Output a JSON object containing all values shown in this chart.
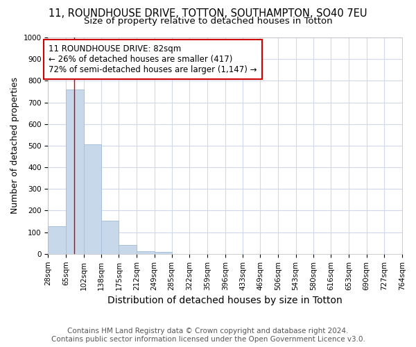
{
  "title": "11, ROUNDHOUSE DRIVE, TOTTON, SOUTHAMPTON, SO40 7EU",
  "subtitle": "Size of property relative to detached houses in Totton",
  "xlabel": "Distribution of detached houses by size in Totton",
  "ylabel": "Number of detached properties",
  "footer_line1": "Contains HM Land Registry data © Crown copyright and database right 2024.",
  "footer_line2": "Contains public sector information licensed under the Open Government Licence v3.0.",
  "bins": [
    28,
    65,
    102,
    138,
    175,
    212,
    249,
    285,
    322,
    359,
    396,
    433,
    469,
    506,
    543,
    580,
    616,
    653,
    690,
    727,
    764
  ],
  "counts": [
    127,
    760,
    507,
    152,
    40,
    12,
    8,
    0,
    0,
    0,
    0,
    0,
    0,
    0,
    0,
    0,
    0,
    0,
    0,
    0
  ],
  "bar_color": "#c8d8eb",
  "bar_edgecolor": "#a8c0d8",
  "red_line_x": 82,
  "ylim": [
    0,
    1000
  ],
  "yticks": [
    0,
    100,
    200,
    300,
    400,
    500,
    600,
    700,
    800,
    900,
    1000
  ],
  "annotation_text_line1": "11 ROUNDHOUSE DRIVE: 82sqm",
  "annotation_text_line2": "← 26% of detached houses are smaller (417)",
  "annotation_text_line3": "72% of semi-detached houses are larger (1,147) →",
  "annotation_box_color": "#ffffff",
  "annotation_border_color": "#cc0000",
  "background_color": "#ffffff",
  "grid_color": "#d0d8eb",
  "title_fontsize": 10.5,
  "subtitle_fontsize": 9.5,
  "xlabel_fontsize": 10,
  "ylabel_fontsize": 9,
  "tick_fontsize": 7.5,
  "annotation_fontsize": 8.5,
  "footer_fontsize": 7.5
}
